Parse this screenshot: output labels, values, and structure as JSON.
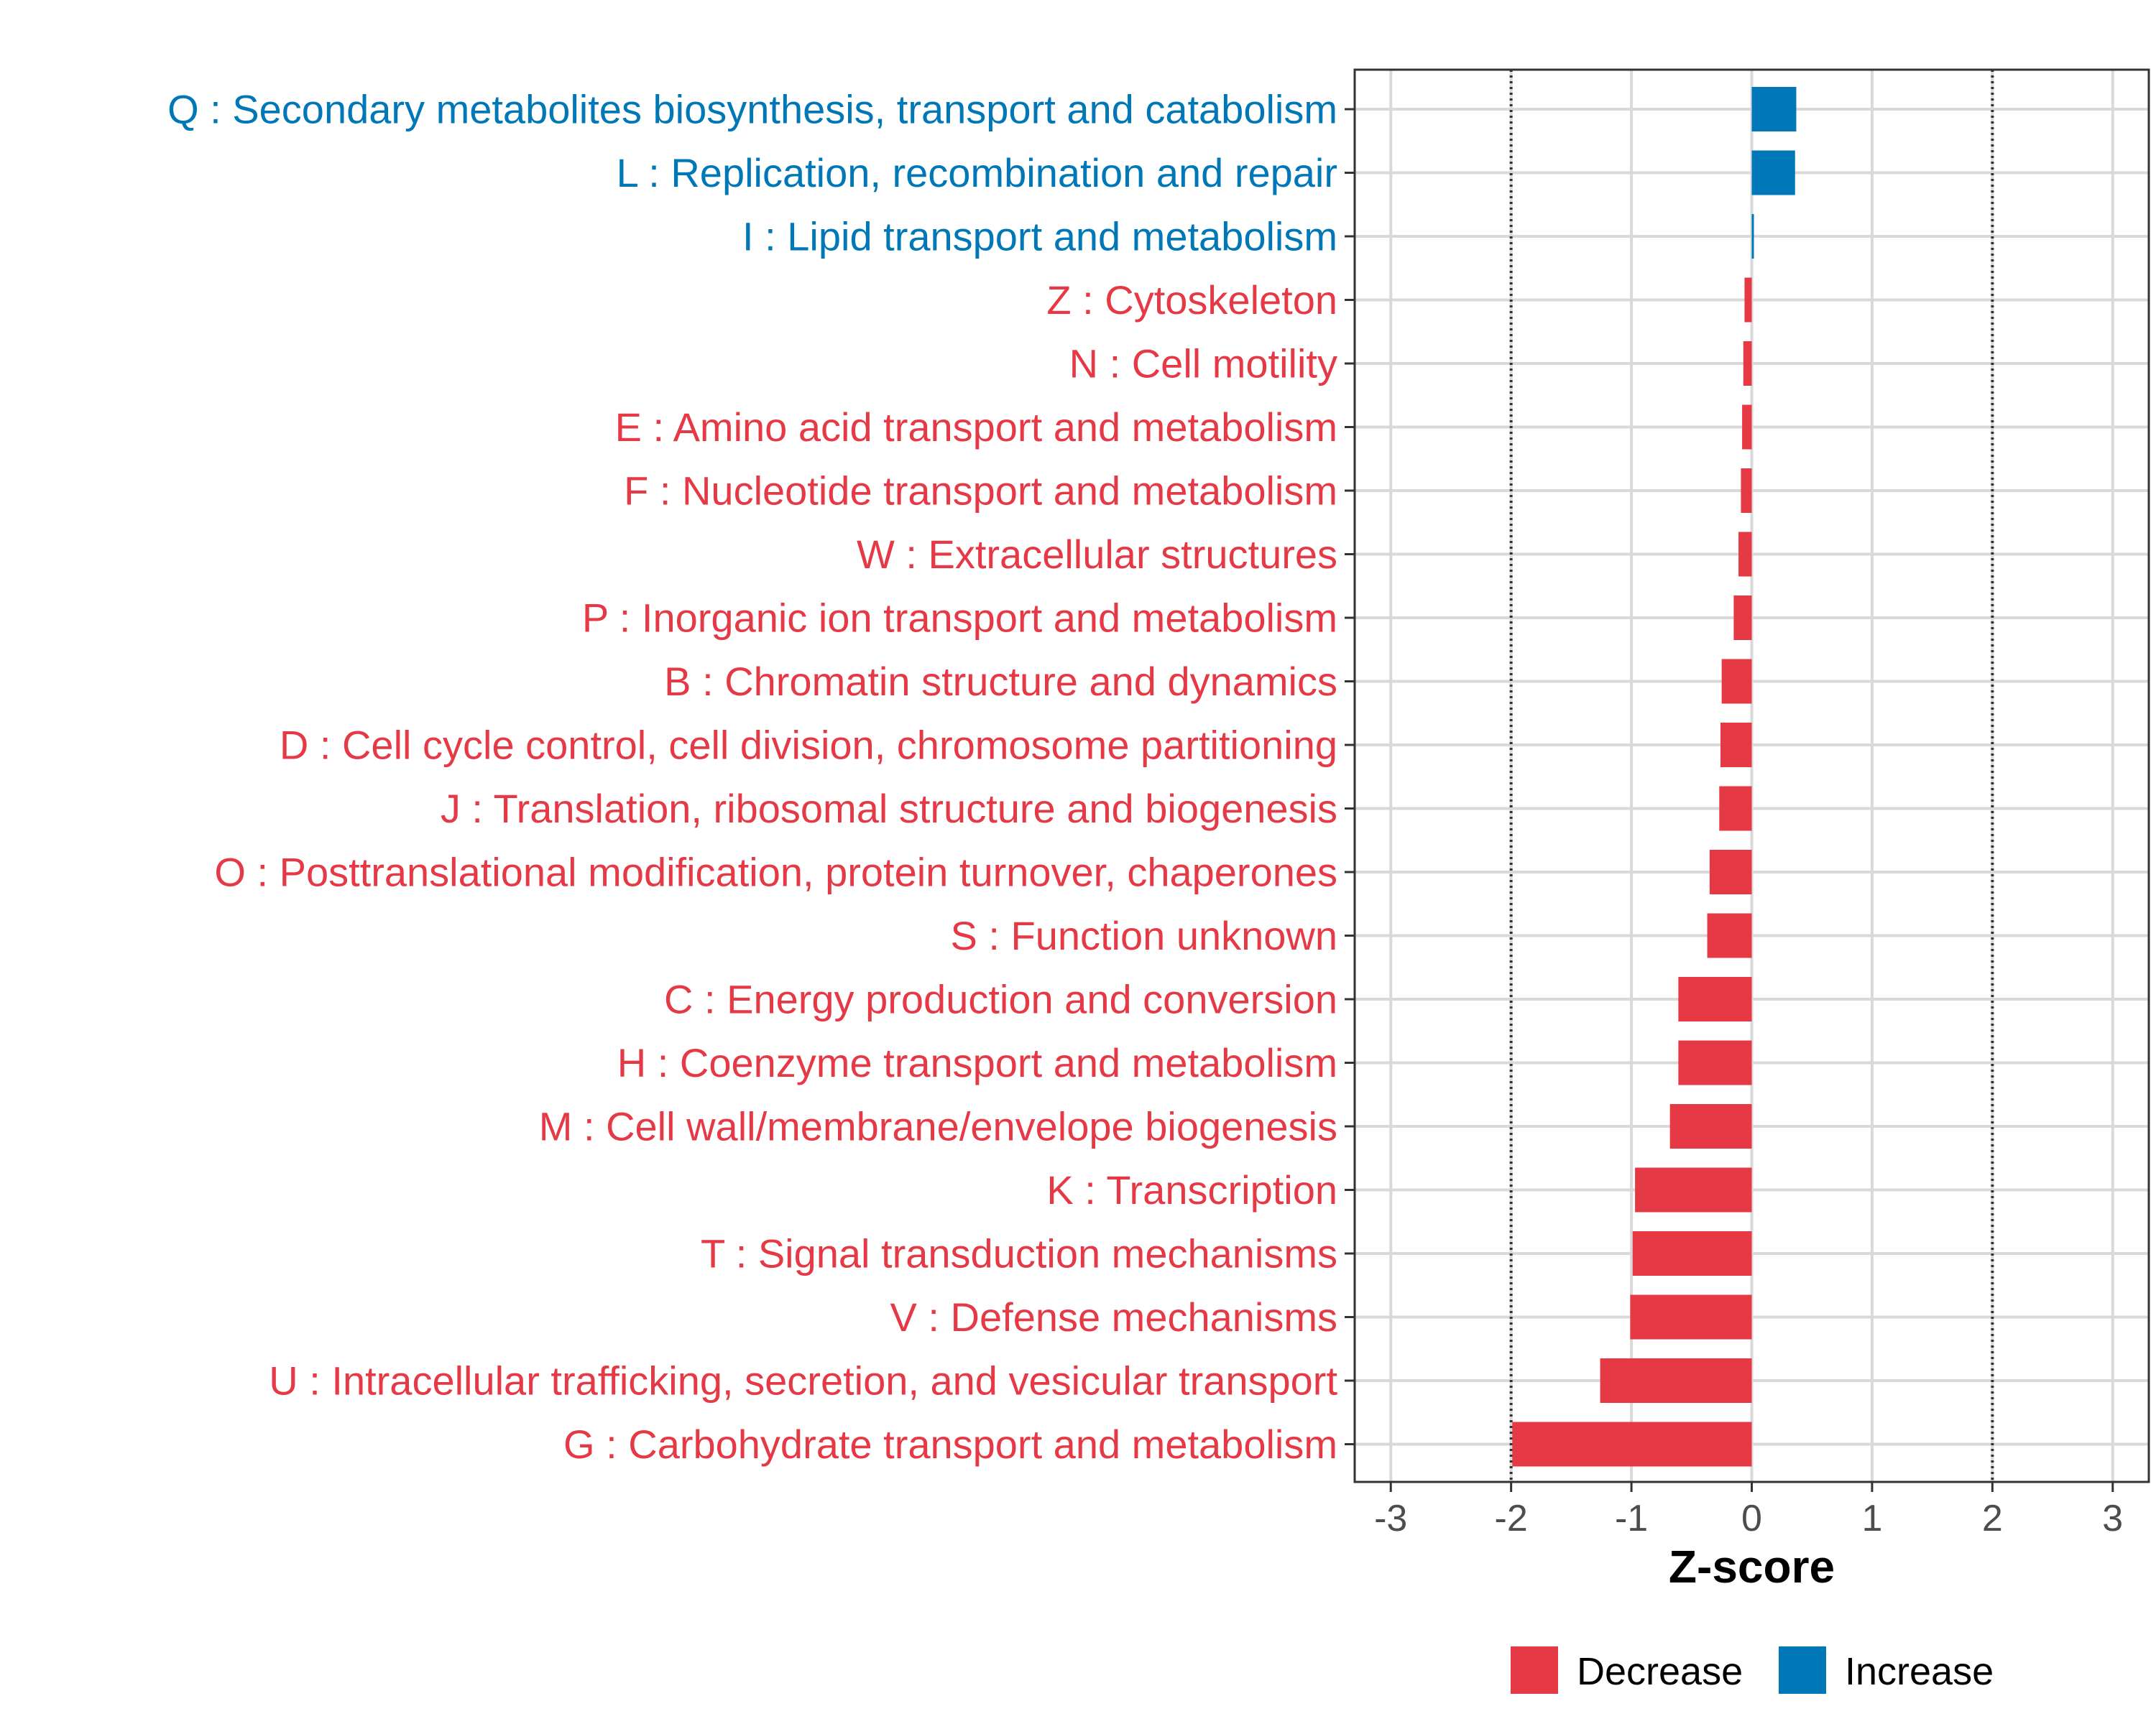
{
  "chart_data": {
    "type": "bar",
    "orientation": "horizontal",
    "title": "",
    "xlabel": "Z-score",
    "ylabel": "",
    "xlim": [
      -3.3,
      3.3
    ],
    "xticks": [
      -3,
      -2,
      -1,
      0,
      1,
      2,
      3
    ],
    "xtick_labels": [
      "-3",
      "-2",
      "-1",
      "0",
      "1",
      "2",
      "3"
    ],
    "reference_lines": [
      -2,
      2
    ],
    "grid": true,
    "legend": {
      "placement": "bottom",
      "entries": [
        {
          "label": "Decrease",
          "color": "#E63946"
        },
        {
          "label": "Increase",
          "color": "#0077B6"
        }
      ]
    },
    "categories": [
      "Q : Secondary metabolites biosynthesis, transport and catabolism",
      "L : Replication, recombination and repair",
      "I : Lipid transport and metabolism",
      "Z : Cytoskeleton",
      "N : Cell motility",
      "E : Amino acid transport and metabolism",
      "F : Nucleotide transport and metabolism",
      "W : Extracellular structures",
      "P : Inorganic ion transport and metabolism",
      "B : Chromatin structure and dynamics",
      "D : Cell cycle control, cell division, chromosome partitioning",
      "J : Translation, ribosomal structure and biogenesis",
      "O : Posttranslational modification, protein turnover, chaperones",
      "S : Function unknown",
      "C : Energy production and conversion",
      "H : Coenzyme transport and metabolism",
      "M : Cell wall/membrane/envelope biogenesis",
      "K : Transcription",
      "T : Signal transduction mechanisms",
      "V : Defense mechanisms",
      "U : Intracellular trafficking, secretion, and vesicular transport",
      "G : Carbohydrate transport and metabolism"
    ],
    "values": [
      0.37,
      0.36,
      0.01,
      -0.06,
      -0.07,
      -0.08,
      -0.09,
      -0.11,
      -0.15,
      -0.25,
      -0.26,
      -0.27,
      -0.35,
      -0.37,
      -0.61,
      -0.61,
      -0.68,
      -0.97,
      -0.99,
      -1.01,
      -1.26,
      -1.99
    ],
    "groups": [
      "Increase",
      "Increase",
      "Increase",
      "Decrease",
      "Decrease",
      "Decrease",
      "Decrease",
      "Decrease",
      "Decrease",
      "Decrease",
      "Decrease",
      "Decrease",
      "Decrease",
      "Decrease",
      "Decrease",
      "Decrease",
      "Decrease",
      "Decrease",
      "Decrease",
      "Decrease",
      "Decrease",
      "Decrease"
    ]
  }
}
